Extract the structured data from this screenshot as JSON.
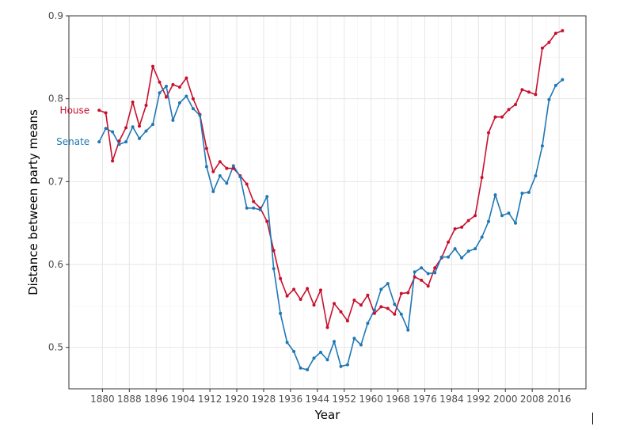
{
  "chart_data": {
    "type": "line",
    "title": "",
    "xlabel": "Year",
    "ylabel": "Distance between party means",
    "xlim": [
      1870,
      2024
    ],
    "ylim": [
      0.45,
      0.9
    ],
    "grid": true,
    "legend": "direct-labels-left",
    "x_ticks": [
      1880,
      1888,
      1896,
      1904,
      1912,
      1920,
      1928,
      1936,
      1944,
      1952,
      1960,
      1968,
      1976,
      1984,
      1992,
      2000,
      2008,
      2016
    ],
    "x_tick_labels": [
      "1880",
      "1888",
      "1896",
      "1904",
      "1912",
      "1920",
      "1928",
      "1936",
      "1944",
      "1952",
      "1960",
      "1968",
      "1976",
      "1984",
      "1992",
      "2000",
      "2008",
      "2016"
    ],
    "y_ticks": [
      0.5,
      0.6,
      0.7,
      0.8,
      0.9
    ],
    "y_tick_labels": [
      "0.5",
      "0.6",
      "0.7",
      "0.8",
      "0.9"
    ],
    "series": [
      {
        "name": "House",
        "color": "#c8102e",
        "x": [
          1879,
          1881,
          1883,
          1885,
          1887,
          1889,
          1891,
          1893,
          1895,
          1897,
          1899,
          1901,
          1903,
          1905,
          1907,
          1909,
          1911,
          1913,
          1915,
          1917,
          1919,
          1921,
          1923,
          1925,
          1927,
          1929,
          1931,
          1933,
          1935,
          1937,
          1939,
          1941,
          1943,
          1945,
          1947,
          1949,
          1951,
          1953,
          1955,
          1957,
          1959,
          1961,
          1963,
          1965,
          1967,
          1969,
          1971,
          1973,
          1975,
          1977,
          1979,
          1981,
          1983,
          1985,
          1987,
          1989,
          1991,
          1993,
          1995,
          1997,
          1999,
          2001,
          2003,
          2005,
          2007,
          2009,
          2011,
          2013,
          2015,
          2017
        ],
        "values": [
          0.786,
          0.783,
          0.725,
          0.749,
          0.765,
          0.796,
          0.767,
          0.792,
          0.839,
          0.82,
          0.802,
          0.817,
          0.814,
          0.825,
          0.8,
          0.781,
          0.74,
          0.712,
          0.724,
          0.716,
          0.716,
          0.707,
          0.697,
          0.676,
          0.668,
          0.652,
          0.617,
          0.583,
          0.562,
          0.57,
          0.558,
          0.571,
          0.551,
          0.569,
          0.524,
          0.553,
          0.543,
          0.532,
          0.557,
          0.551,
          0.563,
          0.541,
          0.549,
          0.547,
          0.54,
          0.565,
          0.566,
          0.585,
          0.581,
          0.574,
          0.596,
          0.608,
          0.627,
          0.643,
          0.645,
          0.653,
          0.659,
          0.705,
          0.759,
          0.778,
          0.778,
          0.787,
          0.793,
          0.811,
          0.808,
          0.805,
          0.861,
          0.868,
          0.879,
          0.882
        ]
      },
      {
        "name": "Senate",
        "color": "#1f78b4",
        "x": [
          1879,
          1881,
          1883,
          1885,
          1887,
          1889,
          1891,
          1893,
          1895,
          1897,
          1899,
          1901,
          1903,
          1905,
          1907,
          1909,
          1911,
          1913,
          1915,
          1917,
          1919,
          1921,
          1923,
          1925,
          1927,
          1929,
          1931,
          1933,
          1935,
          1937,
          1939,
          1941,
          1943,
          1945,
          1947,
          1949,
          1951,
          1953,
          1955,
          1957,
          1959,
          1961,
          1963,
          1965,
          1967,
          1969,
          1971,
          1973,
          1975,
          1977,
          1979,
          1981,
          1983,
          1985,
          1987,
          1989,
          1991,
          1993,
          1995,
          1997,
          1999,
          2001,
          2003,
          2005,
          2007,
          2009,
          2011,
          2013,
          2015,
          2017
        ],
        "values": [
          0.748,
          0.764,
          0.76,
          0.745,
          0.748,
          0.766,
          0.752,
          0.761,
          0.769,
          0.807,
          0.815,
          0.774,
          0.795,
          0.803,
          0.788,
          0.78,
          0.718,
          0.688,
          0.707,
          0.698,
          0.719,
          0.706,
          0.668,
          0.668,
          0.666,
          0.682,
          0.595,
          0.541,
          0.506,
          0.495,
          0.475,
          0.473,
          0.487,
          0.494,
          0.485,
          0.507,
          0.477,
          0.479,
          0.511,
          0.503,
          0.529,
          0.545,
          0.57,
          0.577,
          0.552,
          0.54,
          0.521,
          0.591,
          0.596,
          0.589,
          0.59,
          0.609,
          0.609,
          0.619,
          0.608,
          0.616,
          0.619,
          0.633,
          0.652,
          0.684,
          0.659,
          0.662,
          0.65,
          0.686,
          0.687,
          0.707,
          0.743,
          0.799,
          0.816,
          0.823
        ]
      }
    ]
  }
}
